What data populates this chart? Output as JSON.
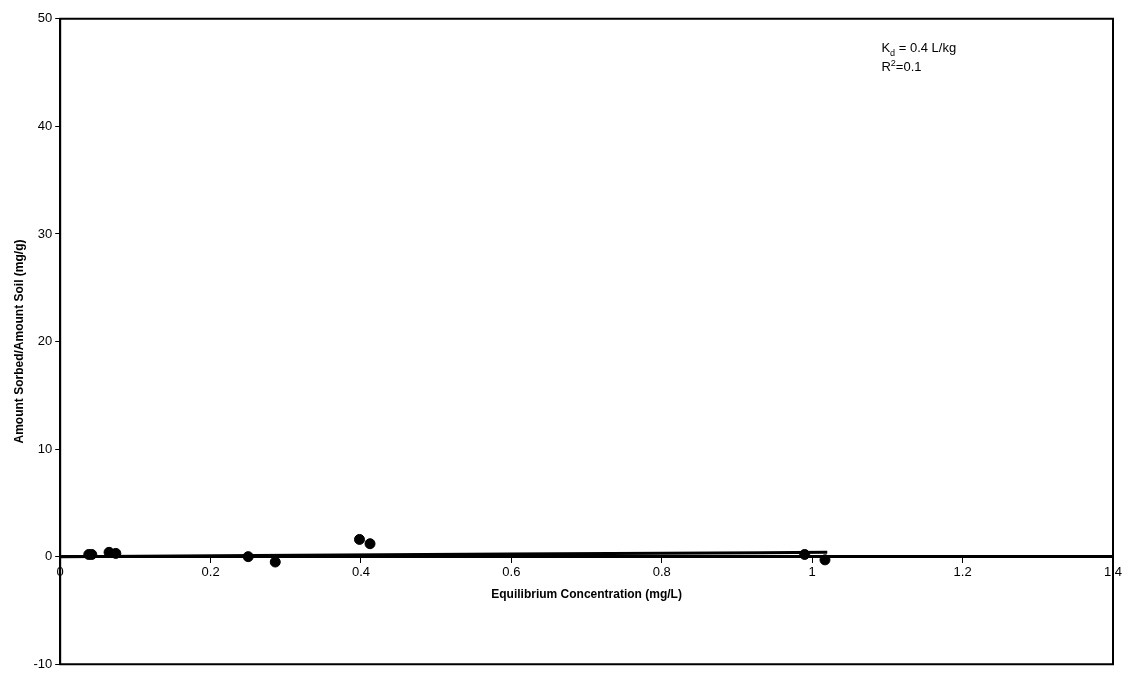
{
  "chart_data": {
    "type": "scatter",
    "xlabel": "Equilibrium Concentration (mg/L)",
    "ylabel": "Amount Sorbed/Amount Soil (mg/g)",
    "series": [
      {
        "color": "#000000",
        "marker": "circle",
        "x": [
          0.038,
          0.042,
          0.065,
          0.074,
          0.25,
          0.286,
          0.398,
          0.412,
          0.99,
          1.017
        ],
        "values": [
          0.2,
          0.2,
          0.4,
          0.3,
          0.0,
          -0.5,
          1.6,
          1.2,
          0.2,
          -0.3
        ]
      },
      {
        "type": "line",
        "color": "#000000",
        "marker": "none",
        "x": [
          0,
          1.02
        ],
        "values": [
          0,
          0.4
        ]
      }
    ],
    "xlim": [
      0,
      1.4
    ],
    "xticks": [
      0,
      0.2,
      0.4,
      0.6,
      0.8,
      1,
      1.2,
      1.4
    ],
    "ylim": [
      -10,
      50
    ],
    "yticks": [
      -10,
      0,
      10,
      20,
      30,
      40,
      50
    ],
    "grid": false,
    "legend": false,
    "annotations": [
      "K$_{d}$ = 0.4 L/kg",
      "R$^{2}$=0.1"
    ]
  }
}
